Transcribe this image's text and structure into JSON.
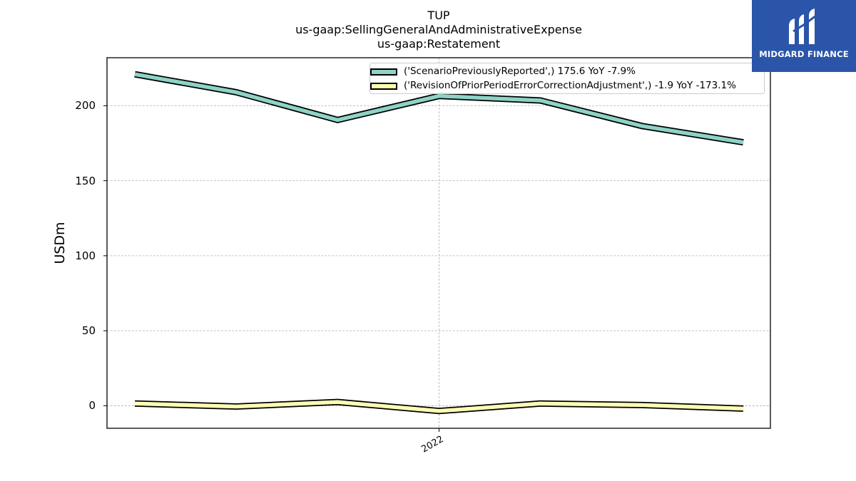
{
  "chart_data": {
    "type": "line",
    "title_lines": [
      "TUP",
      "us-gaap:SellingGeneralAndAdministrativeExpense",
      "us-gaap:Restatement"
    ],
    "xlabel": "",
    "ylabel": "USDm",
    "ylim": [
      -15,
      232
    ],
    "yticks": [
      0,
      50,
      100,
      150,
      200
    ],
    "x_points": 7,
    "xticks": [
      {
        "index": 3,
        "label": "2022"
      }
    ],
    "grid": true,
    "legend_position": "top-right",
    "series": [
      {
        "name": "('ScenarioPreviouslyReported',) 175.6 YoY -7.9%",
        "color": "#8dd3c7",
        "values": [
          221,
          209,
          190.5,
          206.5,
          203.5,
          186.5,
          175.6
        ]
      },
      {
        "name": "('RevisionOfPriorPeriodErrorCorrectionAdjustment',) -1.9 YoY -173.1%",
        "color": "#ffffb3",
        "values": [
          1.5,
          -0.5,
          2.5,
          -3.5,
          1.5,
          0.5,
          -1.9
        ]
      }
    ]
  },
  "logo": {
    "text": "MIDGARD FINANCE",
    "background": "#2a55a8"
  }
}
